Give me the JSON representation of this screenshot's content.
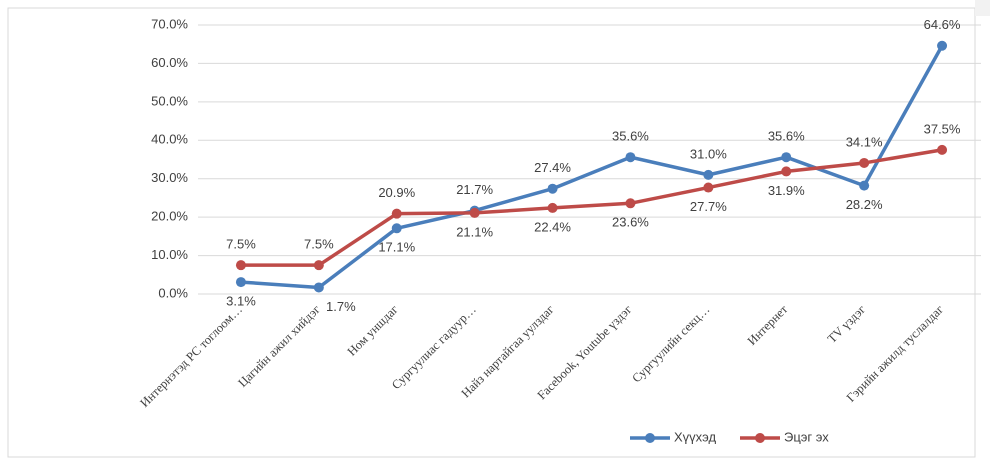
{
  "chart_data": {
    "type": "line",
    "categories": [
      "Интернэтэд PC тоглоом…",
      "Цагийн ажил хийдэг",
      "Ном уншдаг",
      "Сургуулиас гадуур…",
      "Найз нартайгаа уулздаг",
      "Facebook, Youtube үздэг",
      "Сургуулийн секц…",
      "Интернет",
      "TV үздэг",
      "Гэрийн ажилд туслалдаг"
    ],
    "series": [
      {
        "name": "Хүүхэд",
        "color": "#4a7ebb",
        "values": [
          3.1,
          1.7,
          17.1,
          21.7,
          27.4,
          35.6,
          31.0,
          35.6,
          28.2,
          64.6
        ],
        "value_labels": [
          "3.1%",
          "1.7%",
          "17.1%",
          "21.7%",
          "27.4%",
          "35.6%",
          "31.0%",
          "35.6%",
          "28.2%",
          "64.6%"
        ]
      },
      {
        "name": "Эцэг эх",
        "color": "#be4b48",
        "values": [
          7.5,
          7.5,
          20.9,
          21.1,
          22.4,
          23.6,
          27.7,
          31.9,
          34.1,
          37.5
        ],
        "value_labels": [
          "7.5%",
          "7.5%",
          "20.9%",
          "21.1%",
          "22.4%",
          "23.6%",
          "27.7%",
          "31.9%",
          "34.1%",
          "37.5%"
        ]
      }
    ],
    "ylim": [
      0,
      70
    ],
    "yticks": [
      {
        "value": 0,
        "label": "0.0%"
      },
      {
        "value": 10,
        "label": "10.0%"
      },
      {
        "value": 20,
        "label": "20.0%"
      },
      {
        "value": 30,
        "label": "30.0%"
      },
      {
        "value": 40,
        "label": "40.0%"
      },
      {
        "value": 50,
        "label": "50.0%"
      },
      {
        "value": 60,
        "label": "60.0%"
      },
      {
        "value": 70,
        "label": "70.0%"
      }
    ],
    "grid": true,
    "legend": "bottom"
  }
}
